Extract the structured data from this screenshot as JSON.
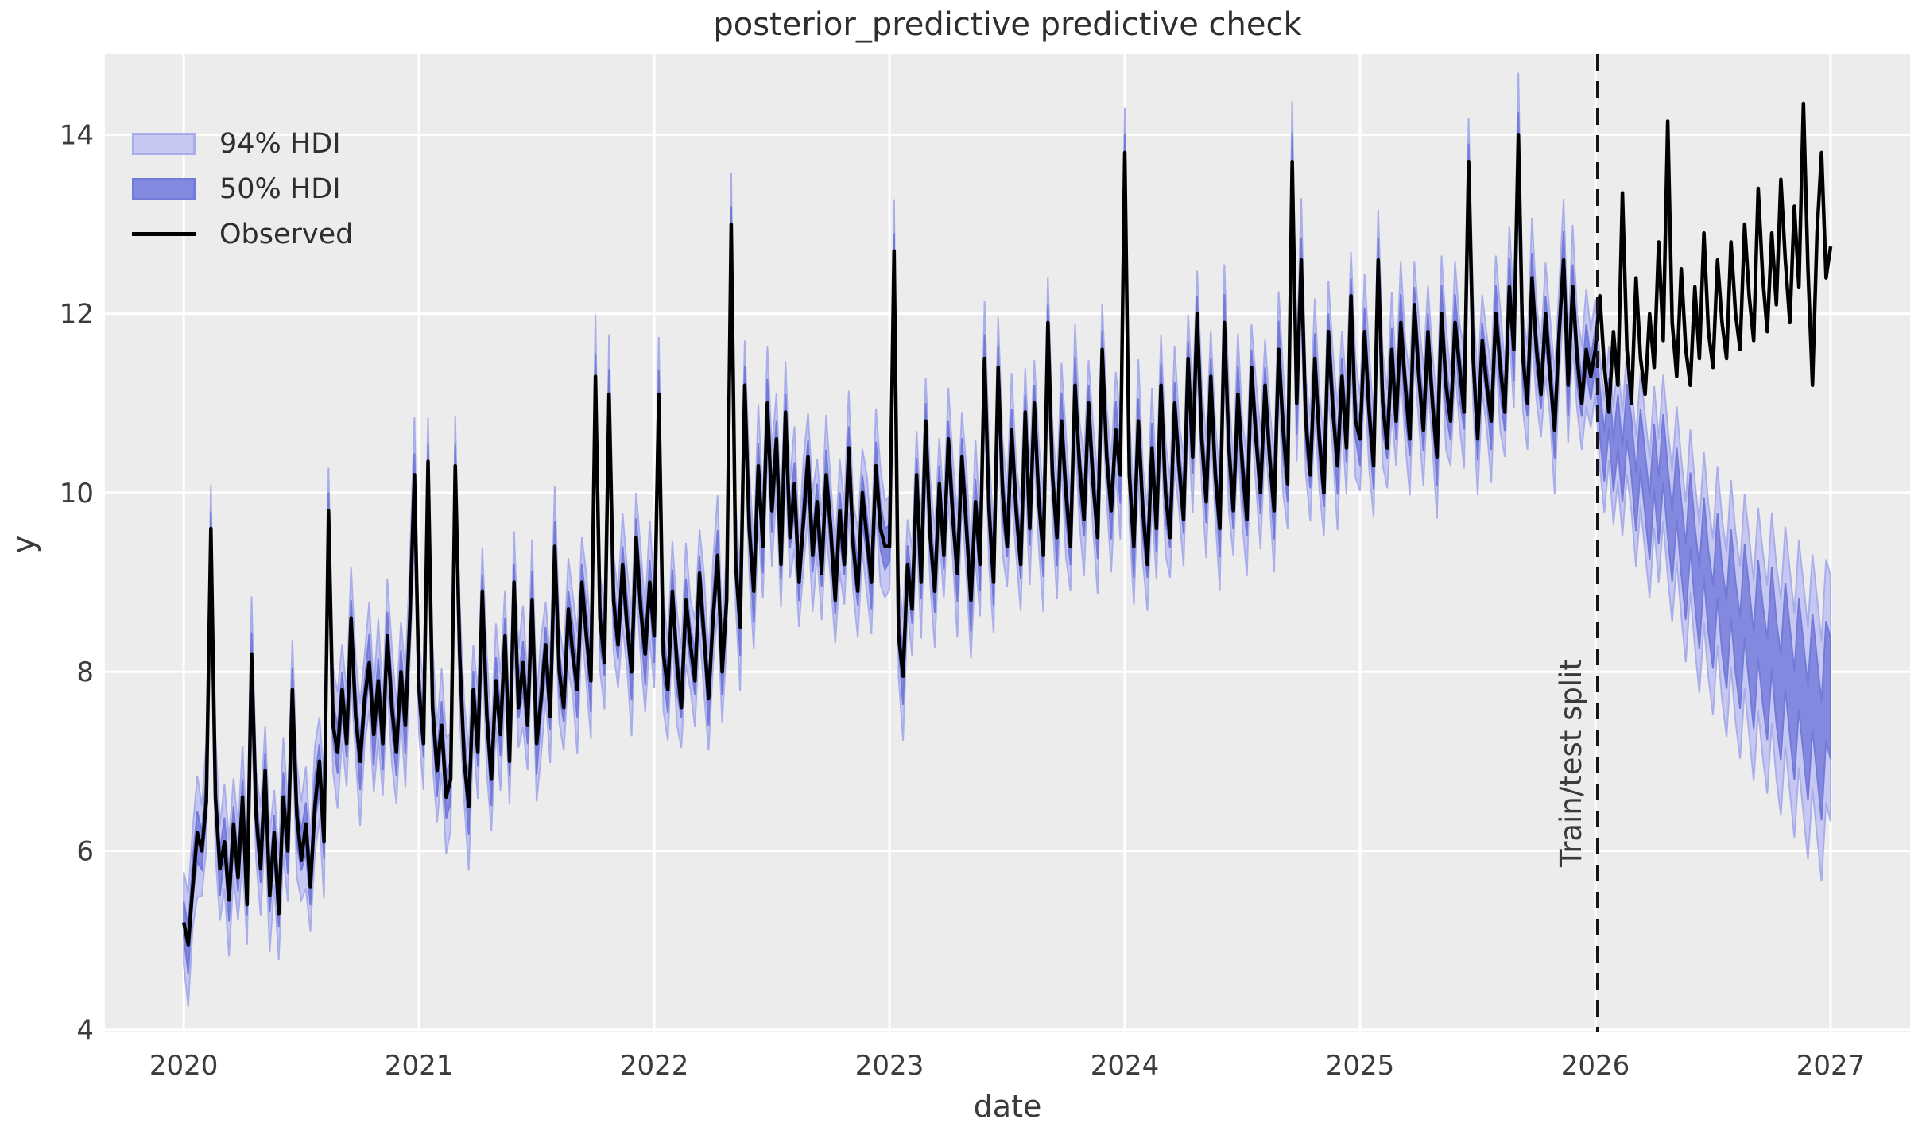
{
  "chart_data": {
    "type": "line",
    "title": "posterior_predictive predictive check",
    "xlabel": "date",
    "ylabel": "y",
    "grid": true,
    "legend_position": "upper left",
    "legend": {
      "items": [
        {
          "label": "94% HDI"
        },
        {
          "label": "50% HDI"
        },
        {
          "label": "Observed"
        }
      ]
    },
    "xlim": [
      2019.665,
      2027.338
    ],
    "ylim": [
      3.98,
      14.9
    ],
    "xticks": [
      2020,
      2021,
      2022,
      2023,
      2024,
      2025,
      2026,
      2027
    ],
    "yticks": [
      4,
      6,
      8,
      10,
      12,
      14
    ],
    "x_start": 2020.0,
    "x_step": 0.019230769,
    "n_points": 365,
    "split_x": 2026.01,
    "split_label": "Train/test split",
    "observed": [
      5.2,
      4.95,
      5.6,
      6.2,
      6.0,
      6.55,
      9.6,
      6.6,
      5.8,
      6.1,
      5.45,
      6.3,
      5.7,
      6.6,
      5.4,
      8.2,
      6.4,
      5.8,
      6.9,
      5.5,
      6.2,
      5.3,
      6.6,
      6.0,
      7.8,
      6.4,
      5.9,
      6.3,
      5.6,
      6.5,
      7.0,
      6.1,
      9.8,
      7.4,
      7.1,
      7.8,
      7.2,
      8.6,
      7.5,
      7.0,
      7.7,
      8.1,
      7.3,
      7.9,
      7.2,
      8.4,
      7.6,
      7.1,
      8.0,
      7.4,
      8.6,
      10.2,
      7.8,
      7.2,
      10.35,
      7.6,
      6.9,
      7.4,
      6.6,
      6.8,
      10.3,
      8.2,
      7.0,
      6.5,
      7.8,
      7.1,
      8.9,
      7.5,
      6.8,
      7.9,
      7.3,
      8.4,
      7.0,
      9.0,
      7.6,
      8.1,
      7.4,
      8.8,
      7.2,
      7.7,
      8.3,
      7.5,
      9.4,
      8.0,
      7.6,
      8.7,
      8.2,
      7.8,
      9.0,
      8.4,
      7.9,
      11.3,
      8.6,
      8.1,
      11.1,
      8.8,
      8.3,
      9.2,
      8.5,
      8.0,
      9.5,
      8.7,
      8.2,
      9.0,
      8.4,
      11.1,
      8.2,
      7.8,
      8.9,
      8.1,
      7.6,
      8.8,
      8.3,
      7.9,
      9.1,
      8.4,
      7.7,
      8.6,
      9.3,
      8.0,
      8.8,
      13.0,
      9.2,
      8.5,
      11.2,
      9.6,
      8.9,
      10.3,
      9.4,
      11.0,
      9.8,
      10.6,
      9.2,
      10.9,
      9.5,
      10.1,
      9.0,
      9.7,
      10.4,
      9.3,
      9.9,
      9.1,
      10.2,
      9.6,
      8.8,
      9.8,
      9.2,
      10.5,
      9.4,
      8.9,
      10.0,
      9.5,
      9.0,
      10.3,
      9.6,
      9.4,
      9.4,
      12.7,
      8.4,
      7.95,
      9.2,
      8.7,
      10.2,
      9.0,
      10.8,
      9.5,
      8.9,
      10.1,
      9.3,
      10.6,
      9.7,
      9.1,
      10.4,
      9.6,
      8.8,
      9.9,
      9.2,
      11.5,
      9.8,
      9.0,
      11.4,
      10.0,
      9.4,
      10.7,
      9.8,
      9.2,
      10.9,
      9.6,
      11.0,
      9.9,
      9.3,
      11.9,
      10.2,
      9.5,
      10.8,
      10.0,
      9.4,
      11.2,
      10.3,
      9.7,
      11.0,
      10.1,
      9.5,
      11.6,
      10.4,
      9.8,
      10.7,
      10.2,
      13.8,
      10.2,
      9.4,
      10.8,
      9.8,
      9.2,
      10.5,
      9.6,
      11.2,
      10.0,
      9.5,
      11.0,
      10.3,
      9.7,
      11.5,
      10.4,
      12.0,
      10.6,
      9.9,
      11.3,
      10.2,
      9.6,
      11.9,
      10.5,
      9.8,
      11.1,
      10.3,
      9.7,
      11.4,
      10.6,
      10.0,
      11.2,
      10.4,
      9.8,
      11.6,
      10.7,
      10.1,
      13.7,
      11.0,
      12.6,
      10.8,
      10.2,
      11.5,
      10.6,
      10.0,
      11.8,
      10.9,
      10.3,
      11.3,
      10.5,
      12.2,
      10.8,
      10.6,
      11.8,
      10.9,
      10.3,
      12.6,
      11.0,
      10.5,
      11.6,
      10.8,
      11.9,
      11.2,
      10.6,
      12.1,
      11.3,
      10.7,
      11.8,
      11.0,
      10.4,
      12.0,
      11.2,
      10.8,
      11.9,
      11.4,
      10.9,
      13.7,
      11.5,
      10.6,
      11.7,
      11.2,
      10.8,
      12.0,
      11.4,
      10.9,
      12.3,
      11.6,
      14.0,
      11.5,
      11.0,
      12.4,
      11.6,
      11.1,
      12.0,
      11.3,
      10.7,
      11.8,
      12.6,
      11.2,
      12.3,
      11.5,
      11.0,
      11.6,
      11.3,
      11.6,
      12.2,
      11.4,
      10.9,
      11.8,
      11.2,
      13.35,
      11.6,
      11.0,
      12.4,
      11.5,
      11.1,
      12.0,
      11.4,
      12.8,
      11.7,
      14.15,
      11.9,
      11.3,
      12.5,
      11.6,
      11.2,
      12.3,
      11.5,
      12.9,
      11.8,
      11.4,
      12.6,
      11.9,
      11.5,
      12.8,
      12.0,
      11.6,
      13.0,
      12.2,
      11.7,
      13.4,
      12.4,
      11.8,
      12.9,
      12.1,
      13.5,
      12.6,
      11.9,
      13.2,
      12.3,
      14.35,
      12.5,
      11.2,
      12.9,
      13.8,
      12.4,
      12.75
    ],
    "forecast_start_index": 313,
    "posterior_center_forecast": [
      10.9,
      10.4,
      11.0,
      10.3,
      10.8,
      10.2,
      10.9,
      10.5,
      9.9,
      10.6,
      10.1,
      9.6,
      10.4,
      9.8,
      10.5,
      9.9,
      9.4,
      10.1,
      9.5,
      9.0,
      9.8,
      9.2,
      8.7,
      9.5,
      8.9,
      8.5,
      9.3,
      8.7,
      8.3,
      9.1,
      8.5,
      8.1,
      8.9,
      8.4,
      7.9,
      8.7,
      8.2,
      7.8,
      8.6,
      8.0,
      7.6,
      8.4,
      7.9,
      7.4,
      8.2,
      7.7,
      7.2,
      8.0,
      7.5,
      7.0,
      7.9,
      7.7
    ],
    "band_model": {
      "center_jitter": [
        0.04,
        -0.06,
        0.1,
        -0.04,
        0.0,
        0.08,
        -0.08,
        0.03,
        -0.05,
        0.06,
        0.02,
        -0.03
      ],
      "hdi94_half": [
        0.52,
        0.63,
        0.55,
        0.68,
        0.5,
        0.6,
        0.57,
        0.66,
        0.53,
        0.58,
        0.65,
        0.54
      ],
      "hdi50_half": [
        0.2,
        0.26,
        0.22,
        0.28,
        0.21,
        0.24,
        0.27,
        0.22,
        0.25,
        0.21,
        0.26,
        0.23
      ],
      "hdi94_post_base": 0.6,
      "hdi94_post_growth": 0.78,
      "hdi50_post_base": 0.26,
      "hdi50_post_growth": 0.42
    },
    "colors": {
      "figure_background": "#ffffff",
      "plot_background": "#ececec",
      "grid": "#ffffff",
      "hdi94_fill": "#c6c8f1",
      "hdi94_edge": "#a9aeea",
      "hdi50_fill": "#8289df",
      "hdi50_edge": "#737ad8",
      "observed": "#000000",
      "split_line": "#161616",
      "tick_text": "#3b3b3b"
    }
  }
}
